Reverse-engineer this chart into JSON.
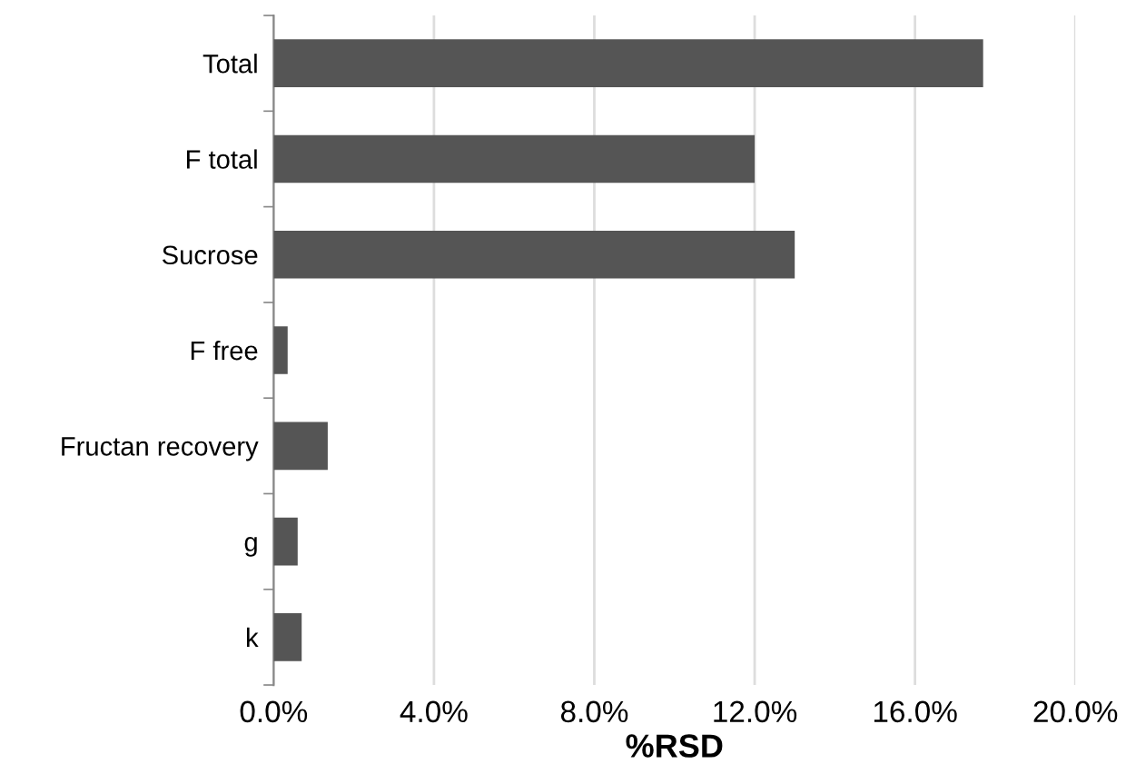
{
  "chart_data": {
    "type": "bar",
    "orientation": "horizontal",
    "xlabel": "%RSD",
    "categories": [
      "Total",
      "F total",
      "Sucrose",
      "F free",
      "Fructan recovery",
      "g",
      "k"
    ],
    "values": [
      17.7,
      12.0,
      13.0,
      0.35,
      1.35,
      0.6,
      0.7
    ],
    "color": "#555555",
    "xlim": [
      0,
      20
    ],
    "xticks": [
      {
        "value": 0,
        "label": "0.0%"
      },
      {
        "value": 4,
        "label": "4.0%"
      },
      {
        "value": 8,
        "label": "8.0%"
      },
      {
        "value": 12,
        "label": "12.0%"
      },
      {
        "value": 16,
        "label": "16.0%"
      },
      {
        "value": 20,
        "label": "20.0%"
      }
    ],
    "grid": "x"
  }
}
